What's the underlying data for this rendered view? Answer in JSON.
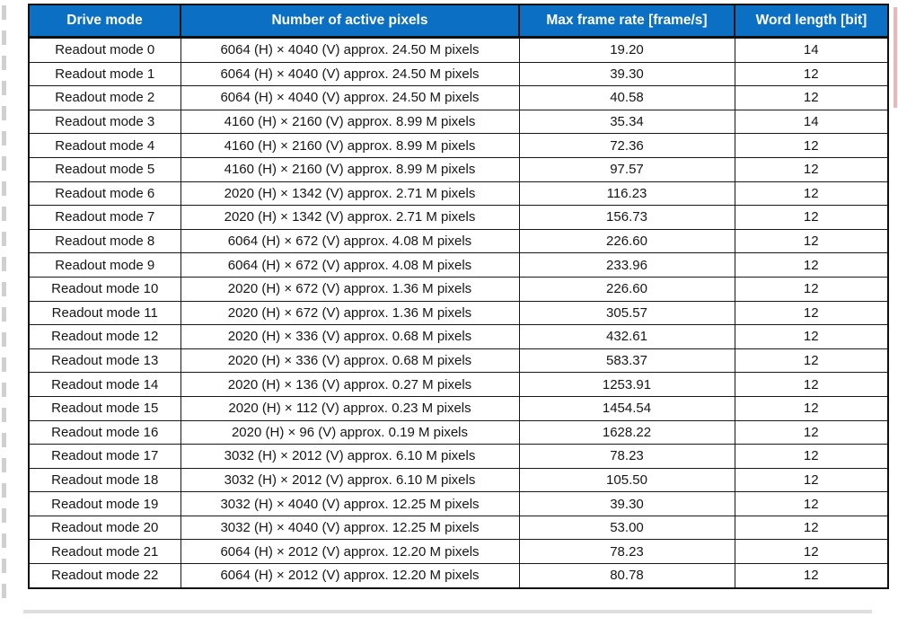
{
  "colors": {
    "header_bg": "#0b70c4",
    "header_text": "#ffffff",
    "body_text": "#161616",
    "border": "#101010"
  },
  "table": {
    "columns": [
      "mode",
      "pixels",
      "rate",
      "word"
    ],
    "headers": [
      "Drive mode",
      "Number of active pixels",
      "Max frame rate [frame/s]",
      "Word length [bit]"
    ],
    "rows": [
      {
        "mode": "Readout mode 0",
        "pixels": "6064 (H) × 4040 (V) approx. 24.50 M pixels",
        "rate": "19.20",
        "word": "14"
      },
      {
        "mode": "Readout mode 1",
        "pixels": "6064 (H) × 4040 (V) approx. 24.50 M pixels",
        "rate": "39.30",
        "word": "12"
      },
      {
        "mode": "Readout mode 2",
        "pixels": "6064 (H) × 4040 (V) approx. 24.50 M pixels",
        "rate": "40.58",
        "word": "12"
      },
      {
        "mode": "Readout mode 3",
        "pixels": "4160 (H) × 2160 (V) approx. 8.99 M pixels",
        "rate": "35.34",
        "word": "14"
      },
      {
        "mode": "Readout mode 4",
        "pixels": "4160 (H) × 2160 (V) approx. 8.99 M pixels",
        "rate": "72.36",
        "word": "12"
      },
      {
        "mode": "Readout mode 5",
        "pixels": "4160 (H) × 2160 (V) approx. 8.99 M pixels",
        "rate": "97.57",
        "word": "12"
      },
      {
        "mode": "Readout mode 6",
        "pixels": "2020 (H) × 1342 (V) approx. 2.71 M pixels",
        "rate": "116.23",
        "word": "12"
      },
      {
        "mode": "Readout mode 7",
        "pixels": "2020 (H) × 1342 (V) approx. 2.71 M pixels",
        "rate": "156.73",
        "word": "12"
      },
      {
        "mode": "Readout mode 8",
        "pixels": "6064 (H) × 672 (V) approx. 4.08 M pixels",
        "rate": "226.60",
        "word": "12"
      },
      {
        "mode": "Readout mode 9",
        "pixels": "6064 (H) × 672 (V) approx. 4.08 M pixels",
        "rate": "233.96",
        "word": "12"
      },
      {
        "mode": "Readout mode 10",
        "pixels": "2020 (H) × 672 (V) approx. 1.36 M pixels",
        "rate": "226.60",
        "word": "12"
      },
      {
        "mode": "Readout mode 11",
        "pixels": "2020 (H) × 672 (V) approx. 1.36 M pixels",
        "rate": "305.57",
        "word": "12"
      },
      {
        "mode": "Readout mode 12",
        "pixels": "2020 (H) × 336 (V) approx. 0.68 M pixels",
        "rate": "432.61",
        "word": "12"
      },
      {
        "mode": "Readout mode 13",
        "pixels": "2020 (H) × 336 (V) approx. 0.68 M pixels",
        "rate": "583.37",
        "word": "12"
      },
      {
        "mode": "Readout mode 14",
        "pixels": "2020 (H) × 136 (V) approx. 0.27 M pixels",
        "rate": "1253.91",
        "word": "12"
      },
      {
        "mode": "Readout mode 15",
        "pixels": "2020 (H) × 112 (V) approx. 0.23 M pixels",
        "rate": "1454.54",
        "word": "12"
      },
      {
        "mode": "Readout mode 16",
        "pixels": "2020 (H) × 96 (V) approx. 0.19 M pixels",
        "rate": "1628.22",
        "word": "12"
      },
      {
        "mode": "Readout mode 17",
        "pixels": "3032 (H) × 2012 (V) approx. 6.10 M pixels",
        "rate": "78.23",
        "word": "12"
      },
      {
        "mode": "Readout mode 18",
        "pixels": "3032 (H) × 2012 (V) approx. 6.10 M pixels",
        "rate": "105.50",
        "word": "12"
      },
      {
        "mode": "Readout mode 19",
        "pixels": "3032 (H) × 4040 (V) approx. 12.25 M pixels",
        "rate": "39.30",
        "word": "12"
      },
      {
        "mode": "Readout mode 20",
        "pixels": "3032 (H) × 4040 (V) approx. 12.25 M pixels",
        "rate": "53.00",
        "word": "12"
      },
      {
        "mode": "Readout mode 21",
        "pixels": "6064 (H) × 2012 (V) approx. 12.20 M pixels",
        "rate": "78.23",
        "word": "12"
      },
      {
        "mode": "Readout mode 22",
        "pixels": "6064 (H) × 2012 (V) approx. 12.20 M pixels",
        "rate": "80.78",
        "word": "12"
      }
    ]
  }
}
